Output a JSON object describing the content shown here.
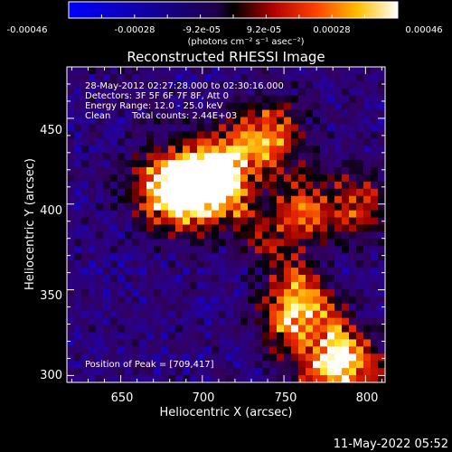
{
  "colorbar": {
    "ticks": [
      "-0.00046",
      "-0.00028",
      "-9.2e-05",
      "9.2e-05",
      "0.00028",
      "0.00046"
    ],
    "unit_label": "(photons cm⁻² s⁻¹ asec⁻²)",
    "range": [
      -0.00046,
      0.00046
    ]
  },
  "chart_data": {
    "type": "heatmap",
    "title": "Reconstructed RHESSI Image",
    "xlabel": "Heliocentric X (arcsec)",
    "ylabel": "Heliocentric Y (arcsec)",
    "xlim": [
      617,
      812
    ],
    "ylim": [
      296,
      480
    ],
    "x_ticks": [
      "650",
      "700",
      "750",
      "800"
    ],
    "y_ticks": [
      "300",
      "350",
      "400",
      "450"
    ],
    "annotations": [
      "28-May-2012 02:27:28.000 to 02:30:16.000",
      "Detectors: 3F 5F 6F 7F 8F, Att 0",
      "Energy Range: 12.0 - 25.0 keV",
      "Clean",
      "Total counts: 2.44E+03"
    ],
    "peak_label": "Position of Peak = [709,417]",
    "peak": [
      709,
      417
    ],
    "bright_regions": [
      {
        "x": 710,
        "y": 420,
        "intensity": 1.0
      },
      {
        "x": 695,
        "y": 405,
        "intensity": 0.8
      },
      {
        "x": 675,
        "y": 410,
        "intensity": 0.75
      },
      {
        "x": 740,
        "y": 440,
        "intensity": 0.7
      },
      {
        "x": 760,
        "y": 395,
        "intensity": 0.6
      },
      {
        "x": 755,
        "y": 335,
        "intensity": 0.75
      },
      {
        "x": 780,
        "y": 305,
        "intensity": 0.9
      },
      {
        "x": 795,
        "y": 400,
        "intensity": 0.5
      }
    ]
  },
  "footer": {
    "date": "11-May-2022 05:52"
  }
}
